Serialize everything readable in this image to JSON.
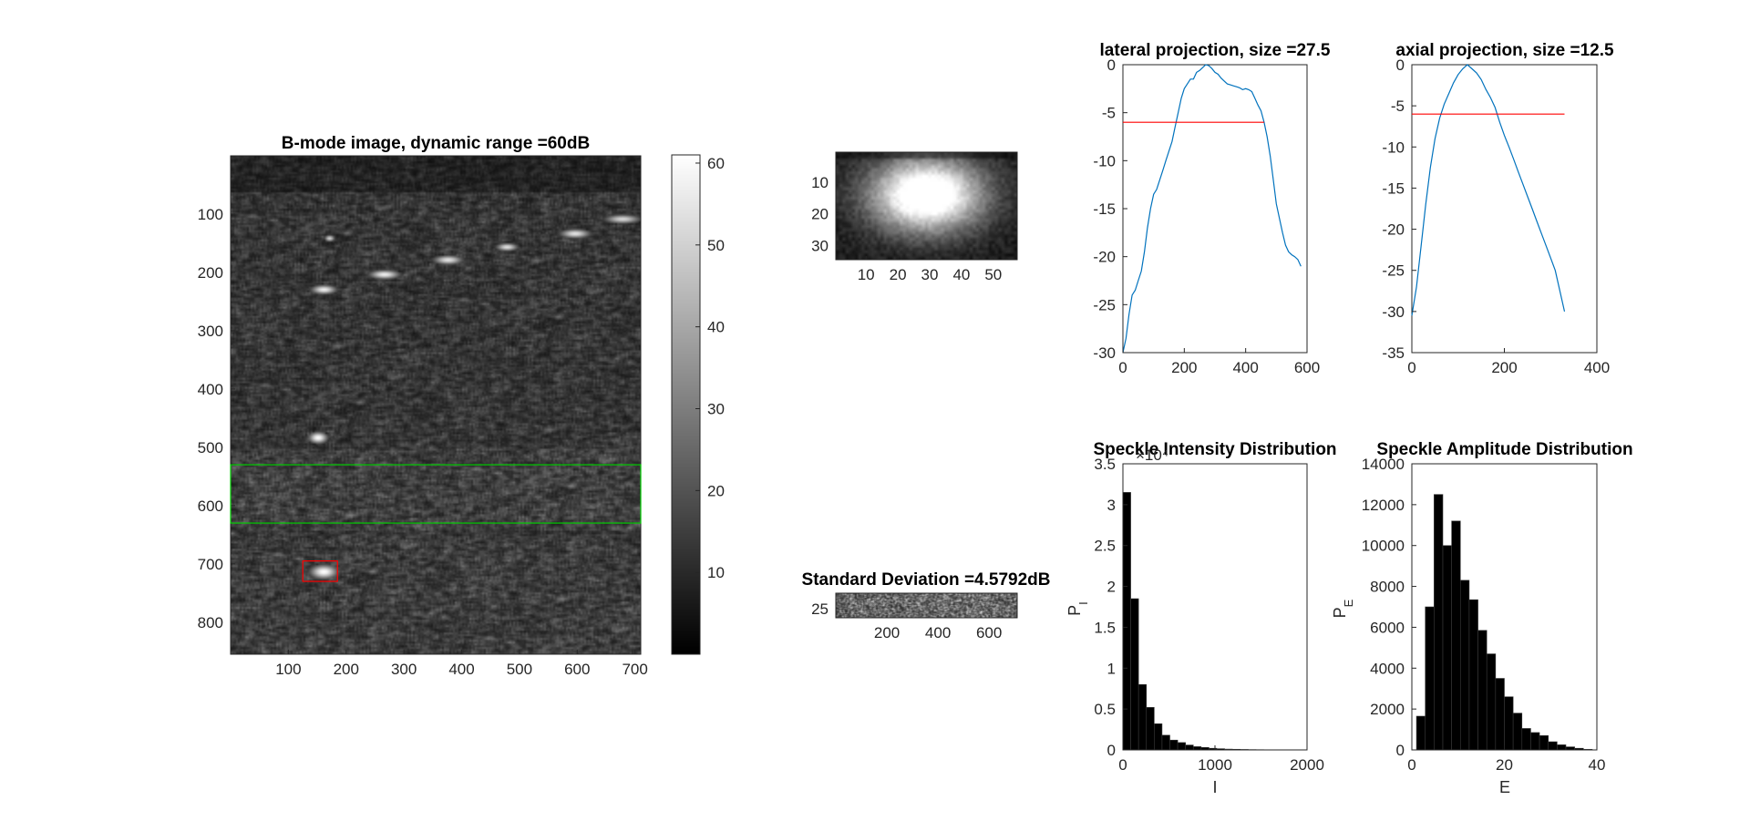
{
  "chart_data": [
    {
      "id": "bmode",
      "type": "heatmap",
      "title": "B-mode image, dynamic range =60dB",
      "xlim": [
        0,
        710
      ],
      "ylim": [
        855,
        0
      ],
      "xticks": [
        100,
        200,
        300,
        400,
        500,
        600,
        700
      ],
      "yticks": [
        100,
        200,
        300,
        400,
        500,
        600,
        700,
        800
      ],
      "colormap": "gray",
      "colorbar": {
        "clim": [
          0,
          61
        ],
        "ticks": [
          10,
          20,
          30,
          40,
          50,
          60
        ]
      },
      "targets": [
        {
          "x": 170,
          "y": 140,
          "w": 16,
          "h": 10,
          "b": 0.85
        },
        {
          "x": 160,
          "y": 228,
          "w": 40,
          "h": 14,
          "b": 0.95
        },
        {
          "x": 265,
          "y": 202,
          "w": 48,
          "h": 14,
          "b": 0.95
        },
        {
          "x": 375,
          "y": 177,
          "w": 46,
          "h": 14,
          "b": 0.9
        },
        {
          "x": 477,
          "y": 155,
          "w": 34,
          "h": 12,
          "b": 0.9
        },
        {
          "x": 595,
          "y": 132,
          "w": 48,
          "h": 14,
          "b": 0.9
        },
        {
          "x": 677,
          "y": 107,
          "w": 56,
          "h": 14,
          "b": 0.85
        },
        {
          "x": 150,
          "y": 482,
          "w": 30,
          "h": 18,
          "b": 1.0
        },
        {
          "x": 160,
          "y": 712,
          "w": 44,
          "h": 22,
          "b": 1.0
        }
      ],
      "annotations": [
        {
          "shape": "rect",
          "color": "#00cc00",
          "x0": 0,
          "x1": 710,
          "y0": 530,
          "y1": 630
        },
        {
          "shape": "rect",
          "color": "#ff0000",
          "x0": 125,
          "x1": 185,
          "y0": 695,
          "y1": 730
        }
      ]
    },
    {
      "id": "crop",
      "type": "heatmap",
      "xlim": [
        0.5,
        57.5
      ],
      "ylim": [
        34.5,
        0.5
      ],
      "xticks": [
        10,
        20,
        30,
        40,
        50
      ],
      "yticks": [
        10,
        20,
        30
      ],
      "colormap": "gray"
    },
    {
      "id": "std",
      "type": "heatmap",
      "title": "Standard Deviation =4.5792dB",
      "xlim": [
        0,
        710
      ],
      "ylim": [
        40,
        0
      ],
      "xticks": [
        200,
        400,
        600
      ],
      "yticks": [
        25
      ],
      "colormap": "gray"
    },
    {
      "id": "lateral",
      "type": "line",
      "title": "lateral projection, size =27.5",
      "xlim": [
        0,
        600
      ],
      "ylim": [
        -30,
        0
      ],
      "xticks": [
        0,
        200,
        400,
        600
      ],
      "yticks": [
        0,
        -5,
        -10,
        -15,
        -20,
        -25,
        -30
      ],
      "series": [
        {
          "color": "#0072BD",
          "x": [
            0,
            10,
            20,
            30,
            40,
            50,
            60,
            70,
            80,
            90,
            100,
            110,
            120,
            130,
            140,
            150,
            160,
            170,
            180,
            190,
            200,
            210,
            220,
            230,
            240,
            250,
            260,
            270,
            280,
            290,
            300,
            310,
            320,
            330,
            340,
            350,
            360,
            370,
            380,
            390,
            400,
            410,
            420,
            430,
            440,
            450,
            460,
            470,
            480,
            490,
            500,
            510,
            520,
            530,
            540,
            550,
            560,
            570,
            580
          ],
          "y": [
            -30,
            -28.5,
            -26,
            -24,
            -23.5,
            -22.5,
            -21.5,
            -19.5,
            -17,
            -15,
            -13.5,
            -13,
            -12,
            -11,
            -10,
            -9,
            -8,
            -6.5,
            -5,
            -3.5,
            -2.5,
            -2,
            -1.5,
            -1.5,
            -0.8,
            -0.6,
            -0.3,
            0,
            -0.1,
            -0.4,
            -0.8,
            -1,
            -1.4,
            -1.7,
            -2,
            -2.1,
            -2.2,
            -2.3,
            -2.4,
            -2.6,
            -2.5,
            -2.6,
            -2.8,
            -3.5,
            -4.2,
            -4.8,
            -6,
            -7.5,
            -9.5,
            -12,
            -14.5,
            -16,
            -17.5,
            -18.8,
            -19.5,
            -19.8,
            -20,
            -20.3,
            -21
          ]
        },
        {
          "color": "#ff0000",
          "x": [
            0,
            460
          ],
          "y": [
            -6,
            -6
          ]
        }
      ]
    },
    {
      "id": "axial",
      "type": "line",
      "title": "axial projection, size =12.5",
      "xlim": [
        0,
        400
      ],
      "ylim": [
        -35,
        0
      ],
      "xticks": [
        0,
        200,
        400
      ],
      "yticks": [
        0,
        -5,
        -10,
        -15,
        -20,
        -25,
        -30,
        -35
      ],
      "series": [
        {
          "color": "#0072BD",
          "x": [
            0,
            10,
            20,
            30,
            40,
            50,
            60,
            70,
            80,
            90,
            100,
            110,
            120,
            130,
            140,
            150,
            160,
            170,
            180,
            190,
            200,
            210,
            220,
            230,
            240,
            250,
            260,
            270,
            280,
            290,
            300,
            310,
            320,
            330
          ],
          "y": [
            -30.5,
            -27,
            -22,
            -17,
            -12.5,
            -9,
            -6.5,
            -4.8,
            -3.5,
            -2.2,
            -1.2,
            -0.5,
            0,
            -0.5,
            -1,
            -1.8,
            -3,
            -4,
            -5.2,
            -7,
            -8.6,
            -10,
            -11.5,
            -13,
            -14.5,
            -16,
            -17.5,
            -19,
            -20.5,
            -22,
            -23.5,
            -25,
            -27.5,
            -30
          ]
        },
        {
          "color": "#ff0000",
          "x": [
            0,
            330
          ],
          "y": [
            -6,
            -6
          ]
        }
      ]
    },
    {
      "id": "intensity",
      "type": "bar",
      "title": "Speckle Intensity Distribution",
      "exponent_label": "×10⁴",
      "ylabel": "P_I",
      "xlabel": "I",
      "xlim": [
        0,
        2000
      ],
      "ylim": [
        0,
        3.5
      ],
      "xticks": [
        0,
        1000,
        2000
      ],
      "yticks": [
        0,
        0.5,
        1,
        1.5,
        2,
        2.5,
        3,
        3.5
      ],
      "bin_edges": [
        0,
        85,
        170,
        255,
        340,
        425,
        510,
        595,
        680,
        765,
        850,
        935,
        1020,
        1105,
        1190,
        1275,
        1360,
        1445,
        1530,
        1615,
        1700
      ],
      "values": [
        3.15,
        1.85,
        0.8,
        0.52,
        0.32,
        0.18,
        0.12,
        0.09,
        0.06,
        0.04,
        0.03,
        0.02,
        0.015,
        0.01,
        0.008,
        0.006,
        0.004,
        0.003,
        0.002,
        0.002
      ]
    },
    {
      "id": "amplitude",
      "type": "bar",
      "title": "Speckle Amplitude Distribution",
      "ylabel": "P_E",
      "xlabel": "E",
      "xlim": [
        0,
        40
      ],
      "ylim": [
        0,
        14000
      ],
      "xticks": [
        0,
        20,
        40
      ],
      "yticks": [
        0,
        2000,
        4000,
        6000,
        8000,
        10000,
        12000,
        14000
      ],
      "bin_edges": [
        1,
        2.9,
        4.8,
        6.7,
        8.6,
        10.5,
        12.4,
        14.3,
        16.2,
        18.1,
        20,
        21.9,
        23.8,
        25.7,
        27.6,
        29.5,
        31.4,
        33.3,
        35.2,
        37.1,
        39
      ],
      "values": [
        1650,
        7000,
        12500,
        10000,
        11200,
        8300,
        7350,
        5850,
        4700,
        3500,
        2600,
        1800,
        1050,
        850,
        700,
        400,
        250,
        150,
        80,
        30
      ]
    }
  ]
}
